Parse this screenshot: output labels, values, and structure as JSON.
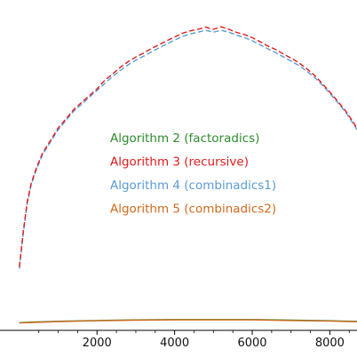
{
  "chart_data": {
    "type": "line",
    "panel_label": ")",
    "xlim": [
      -500,
      8700
    ],
    "ylim": [
      -20,
      1050
    ],
    "x_ticks": [
      2000,
      4000,
      6000,
      8000
    ],
    "x_tick_labels": [
      "2000",
      "4000",
      "6000",
      "8000"
    ],
    "x_minor_ticks": [
      500,
      1000,
      1500,
      2500,
      3000,
      3500,
      4500,
      5000,
      5500,
      6500,
      7000,
      7500,
      8500
    ],
    "legend_placement": "center",
    "series": [
      {
        "name": "Algorithm 2 (factoradics)",
        "color": "#2e8b2e",
        "dash": "none",
        "x": [
          0,
          400,
          1200,
          2000,
          3000,
          4000,
          5000,
          6000,
          7000,
          8000,
          8700
        ],
        "y": [
          5,
          7,
          10,
          12,
          14,
          15,
          15,
          15,
          13,
          11,
          9
        ]
      },
      {
        "name": "Algorithm 3 (recursive)",
        "color": "#e31a1c",
        "dash": "6,3",
        "x": [
          0,
          100,
          200,
          300,
          450,
          600,
          800,
          1000,
          1200,
          1400,
          1600,
          1800,
          2000,
          2200,
          2400,
          2600,
          2800,
          3000,
          3200,
          3400,
          3600,
          3800,
          4000,
          4200,
          4400,
          4600,
          4800,
          5000,
          5200,
          5400,
          5600,
          5800,
          6000,
          6200,
          6400,
          6600,
          6800,
          7000,
          7200,
          7400,
          7600,
          7800,
          8000,
          8200,
          8400,
          8600,
          8700
        ],
        "y": [
          185,
          300,
          395,
          455,
          510,
          555,
          595,
          635,
          665,
          695,
          718,
          740,
          762,
          790,
          810,
          832,
          850,
          865,
          878,
          893,
          905,
          918,
          930,
          942,
          950,
          955,
          962,
          955,
          963,
          955,
          945,
          938,
          928,
          915,
          901,
          890,
          875,
          862,
          847,
          828,
          807,
          780,
          752,
          722,
          692,
          655,
          635
        ]
      },
      {
        "name": "Algorithm 4 (combinadics1)",
        "color": "#5b9bd5",
        "dash": "6,3",
        "x": [
          0,
          100,
          200,
          300,
          450,
          600,
          800,
          1000,
          1200,
          1400,
          1600,
          1800,
          2000,
          2200,
          2400,
          2600,
          2800,
          3000,
          3200,
          3400,
          3600,
          3800,
          4000,
          4200,
          4400,
          4600,
          4800,
          5000,
          5200,
          5400,
          5600,
          5800,
          6000,
          6200,
          6400,
          6600,
          6800,
          7000,
          7200,
          7400,
          7600,
          7800,
          8000,
          8200,
          8400,
          8600,
          8700
        ],
        "y": [
          180,
          295,
          390,
          450,
          505,
          550,
          590,
          630,
          660,
          690,
          712,
          735,
          757,
          780,
          802,
          822,
          840,
          855,
          868,
          882,
          895,
          908,
          920,
          932,
          940,
          946,
          952,
          946,
          952,
          946,
          936,
          928,
          918,
          905,
          892,
          880,
          866,
          852,
          838,
          820,
          800,
          775,
          748,
          718,
          688,
          650,
          630
        ]
      },
      {
        "name": "Algorithm 5 (combinadics2)",
        "color": "#d2691e",
        "dash": "none",
        "x": [
          0,
          400,
          1200,
          2000,
          3000,
          4000,
          5000,
          6000,
          7000,
          8000,
          8700
        ],
        "y": [
          4,
          6,
          9,
          11,
          13,
          14,
          14,
          14,
          12,
          10,
          8
        ]
      }
    ]
  }
}
